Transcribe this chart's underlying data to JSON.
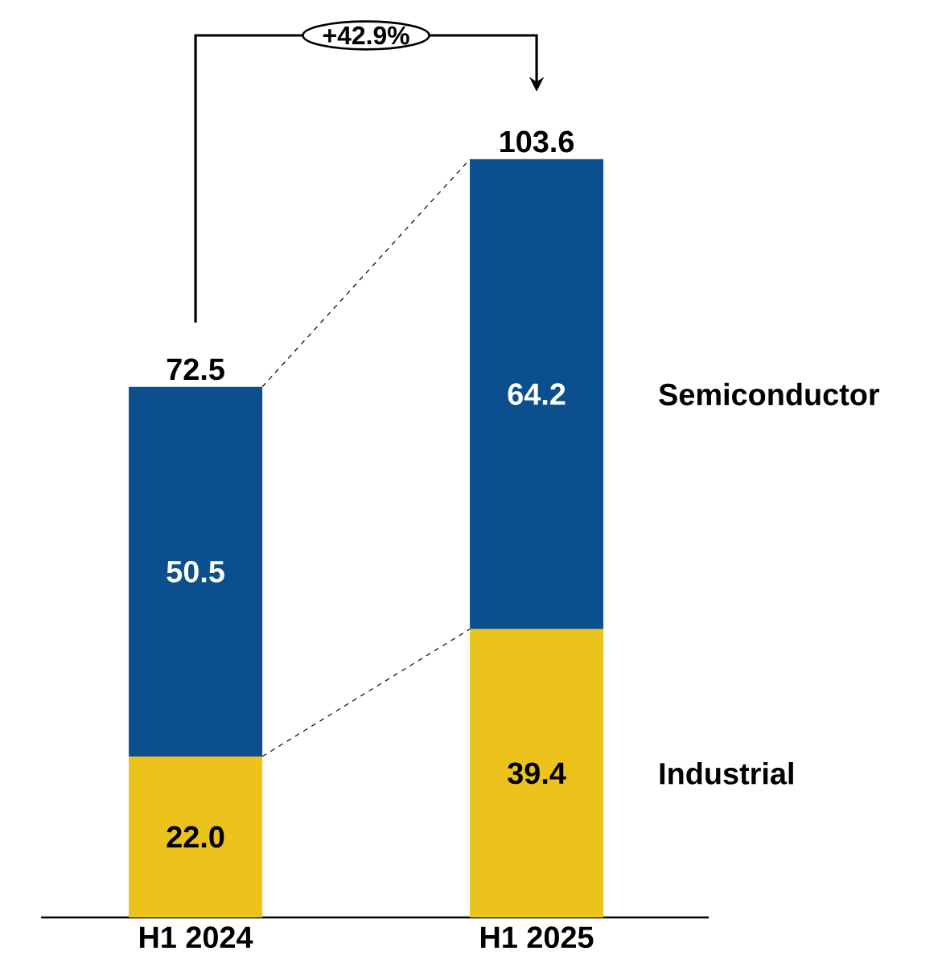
{
  "chart_data": {
    "type": "bar",
    "stacked": true,
    "categories": [
      "H1 2024",
      "H1 2025"
    ],
    "series": [
      {
        "name": "Industrial",
        "color": "#ecc31c",
        "values": [
          22.0,
          39.4
        ],
        "value_labels": [
          "22.0",
          "39.4"
        ]
      },
      {
        "name": "Semiconductor",
        "color": "#0b4f8e",
        "values": [
          50.5,
          64.2
        ],
        "value_labels": [
          "50.5",
          "64.2"
        ]
      }
    ],
    "totals": [
      "72.5",
      "103.6"
    ],
    "annotations": [
      "+42.9%"
    ]
  }
}
